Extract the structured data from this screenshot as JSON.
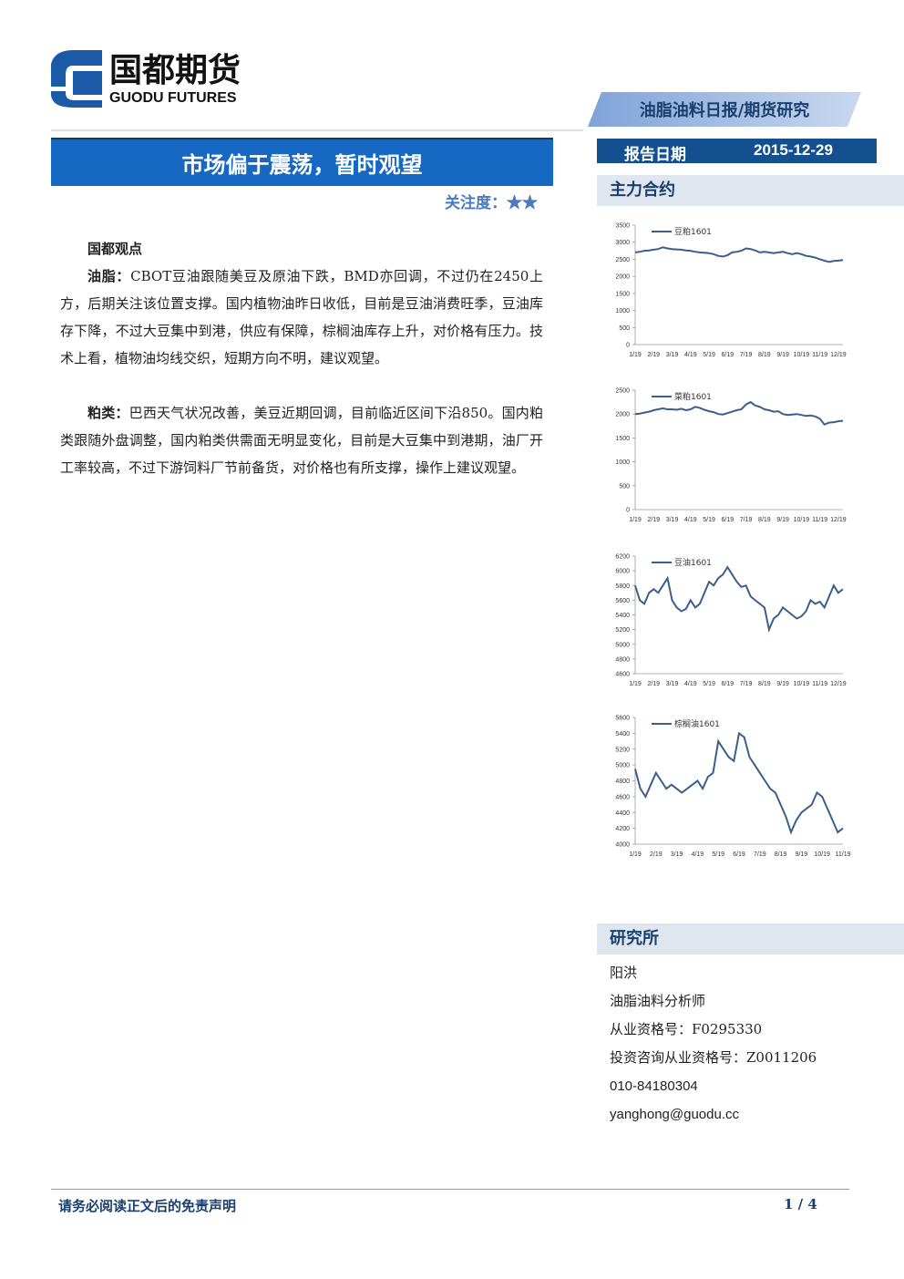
{
  "logo": {
    "name": "国都期货",
    "english": "GUODU FUTURES"
  },
  "report_type": "油脂油料日报/期货研究",
  "title": "市场偏于震荡，暂时观望",
  "attention": {
    "label": "关注度：",
    "stars": "★★"
  },
  "report_date": {
    "label": "报告日期",
    "value": "2015-12-29"
  },
  "contracts_heading": "主力合约",
  "view": {
    "heading": "国都观点",
    "paragraphs": [
      {
        "label": "油脂：",
        "text": "CBOT豆油跟随美豆及原油下跌，BMD亦回调，不过仍在2450上方，后期关注该位置支撑。国内植物油昨日收低，目前是豆油消费旺季，豆油库存下降，不过大豆集中到港，供应有保障，棕榈油库存上升，对价格有压力。技术上看，植物油均线交织，短期方向不明，建议观望。"
      },
      {
        "label": "粕类：",
        "text": "巴西天气状况改善，美豆近期回调，目前临近区间下沿850。国内粕类跟随外盘调整，国内粕类供需面无明显变化，目前是大豆集中到港期，油厂开工率较高，不过下游饲料厂节前备货，对价格也有所支撑，操作上建议观望。"
      }
    ]
  },
  "research": {
    "heading": "研究所",
    "lines": [
      "阳洪",
      "油脂油料分析师",
      "从业资格号：F0295330",
      "投资咨询从业资格号：Z0011206",
      "010-84180304",
      "yanghong@guodu.cc"
    ]
  },
  "footer": {
    "disclaimer": "请务必阅读正文后的免责声明",
    "page": "1 / 4"
  },
  "chart_data": [
    {
      "type": "line",
      "categories": [
        "1/19",
        null,
        null,
        null,
        "2/19",
        null,
        null,
        null,
        "3/19",
        null,
        null,
        null,
        "4/19",
        null,
        null,
        null,
        "5/19",
        null,
        null,
        null,
        "6/19",
        null,
        null,
        null,
        "7/19",
        null,
        null,
        null,
        "8/19",
        null,
        null,
        null,
        "9/19",
        null,
        null,
        null,
        "10/19",
        null,
        null,
        null,
        "11/19",
        null,
        null,
        null,
        "12/19",
        null
      ],
      "series": [
        {
          "name": "豆粕1601",
          "color": "#3b5f8c",
          "values": [
            2700,
            2720,
            2750,
            2760,
            2780,
            2800,
            2850,
            2820,
            2800,
            2790,
            2780,
            2760,
            2750,
            2720,
            2700,
            2690,
            2680,
            2650,
            2600,
            2580,
            2620,
            2700,
            2720,
            2750,
            2820,
            2800,
            2760,
            2700,
            2720,
            2700,
            2680,
            2700,
            2720,
            2680,
            2650,
            2680,
            2650,
            2600,
            2580,
            2550,
            2500,
            2460,
            2420,
            2450,
            2460,
            2480
          ]
        }
      ],
      "ylim": [
        0,
        3500
      ],
      "yticks": [
        0,
        500,
        1000,
        1500,
        2000,
        2500,
        3000,
        3500
      ]
    },
    {
      "type": "line",
      "categories": [
        "1/19",
        null,
        null,
        null,
        "2/19",
        null,
        null,
        null,
        "3/19",
        null,
        null,
        null,
        "4/19",
        null,
        null,
        null,
        "5/19",
        null,
        null,
        null,
        "6/19",
        null,
        null,
        null,
        "7/19",
        null,
        null,
        null,
        "8/19",
        null,
        null,
        null,
        "9/19",
        null,
        null,
        null,
        "10/19",
        null,
        null,
        null,
        "11/19",
        null,
        null,
        null,
        "12/19",
        null
      ],
      "series": [
        {
          "name": "菜粕1601",
          "color": "#3b5f8c",
          "values": [
            2000,
            2010,
            2030,
            2050,
            2080,
            2100,
            2120,
            2100,
            2100,
            2090,
            2110,
            2080,
            2100,
            2150,
            2130,
            2090,
            2060,
            2040,
            2000,
            1990,
            2020,
            2050,
            2080,
            2100,
            2200,
            2250,
            2180,
            2150,
            2100,
            2080,
            2050,
            2060,
            2000,
            1980,
            1990,
            2000,
            1980,
            1960,
            1970,
            1950,
            1900,
            1780,
            1820,
            1830,
            1850,
            1860
          ]
        }
      ],
      "ylim": [
        0,
        2500
      ],
      "yticks": [
        0,
        500,
        1000,
        1500,
        2000,
        2500
      ]
    },
    {
      "type": "line",
      "categories": [
        "1/19",
        null,
        null,
        null,
        "2/19",
        null,
        null,
        null,
        "3/19",
        null,
        null,
        null,
        "4/19",
        null,
        null,
        null,
        "5/19",
        null,
        null,
        null,
        "6/19",
        null,
        null,
        null,
        "7/19",
        null,
        null,
        null,
        "8/19",
        null,
        null,
        null,
        "9/19",
        null,
        null,
        null,
        "10/19",
        null,
        null,
        null,
        "11/19",
        null,
        null,
        null,
        "12/19",
        null
      ],
      "series": [
        {
          "name": "豆油1601",
          "color": "#3b5f8c",
          "values": [
            5800,
            5600,
            5550,
            5700,
            5750,
            5700,
            5800,
            5900,
            5600,
            5500,
            5450,
            5480,
            5600,
            5500,
            5550,
            5700,
            5850,
            5800,
            5900,
            5950,
            6050,
            5950,
            5850,
            5780,
            5800,
            5650,
            5600,
            5550,
            5500,
            5200,
            5350,
            5400,
            5500,
            5450,
            5400,
            5350,
            5380,
            5450,
            5600,
            5550,
            5580,
            5500,
            5650,
            5800,
            5700,
            5750
          ]
        }
      ],
      "ylim": [
        4600,
        6200
      ],
      "yticks": [
        4600,
        4800,
        5000,
        5200,
        5400,
        5600,
        5800,
        6000,
        6200
      ]
    },
    {
      "type": "line",
      "categories": [
        "1/19",
        null,
        null,
        null,
        "2/19",
        null,
        null,
        null,
        "3/19",
        null,
        null,
        null,
        "4/19",
        null,
        null,
        null,
        "5/19",
        null,
        null,
        null,
        "6/19",
        null,
        null,
        null,
        "7/19",
        null,
        null,
        null,
        "8/19",
        null,
        null,
        null,
        "9/19",
        null,
        null,
        null,
        "10/19",
        null,
        null,
        null,
        "11/19"
      ],
      "series": [
        {
          "name": "棕榈油1601",
          "color": "#3b5f8c",
          "values": [
            4950,
            4700,
            4600,
            4750,
            4900,
            4800,
            4700,
            4750,
            4700,
            4650,
            4700,
            4750,
            4800,
            4700,
            4850,
            4900,
            5300,
            5200,
            5100,
            5050,
            5400,
            5350,
            5100,
            5000,
            4900,
            4800,
            4700,
            4650,
            4500,
            4350,
            4150,
            4300,
            4400,
            4450,
            4500,
            4650,
            4600,
            4450,
            4300,
            4150,
            4200
          ]
        }
      ],
      "ylim": [
        4000,
        5600
      ],
      "yticks": [
        4000,
        4200,
        4400,
        4600,
        4800,
        5000,
        5200,
        5400,
        5600
      ]
    }
  ]
}
